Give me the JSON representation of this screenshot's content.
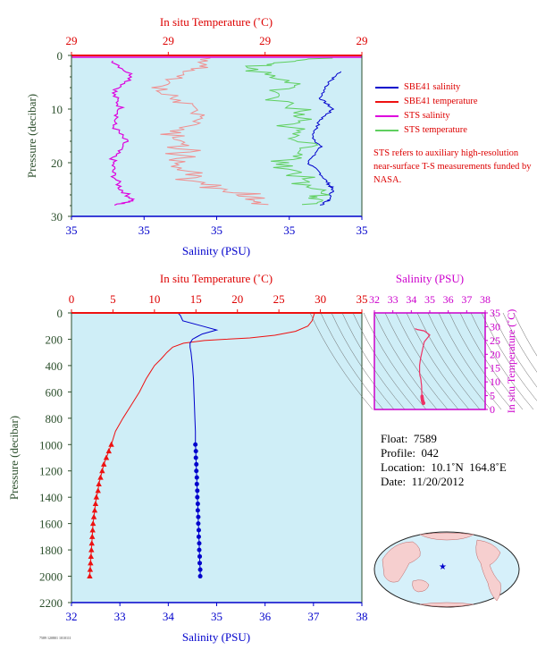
{
  "colors": {
    "plot_bg": "#cfeef7",
    "salinity": "#0000cc",
    "temperature": "#ee1111",
    "sts_salinity": "#dd00dd",
    "sts_temperature": "#5fcf5f",
    "pressure_axis": "#2c4f2c",
    "grid_lines": "#666666"
  },
  "top_chart": {
    "top_axis_title": "In situ Temperature (˚C)",
    "bottom_axis_title": "Salinity (PSU)",
    "left_axis_title": "Pressure (decibar)",
    "temp_ticks": [
      "29",
      "29",
      "29",
      "29"
    ],
    "sal_ticks": [
      "35",
      "35",
      "35",
      "35",
      "35"
    ],
    "pressure_ticks": [
      "0",
      "10",
      "20",
      "30"
    ]
  },
  "legend": {
    "items": [
      {
        "label": "SBE41 salinity",
        "color": "#0000cc"
      },
      {
        "label": "SBE41 temperature",
        "color": "#ee1111"
      },
      {
        "label": "STS salinity",
        "color": "#dd00dd"
      },
      {
        "label": "STS temperature",
        "color": "#5fcf5f"
      }
    ],
    "note": "STS refers to auxiliary high-resolution near-surface T-S measurements funded by NASA."
  },
  "main_chart": {
    "top_axis_title": "In situ Temperature (˚C)",
    "bottom_axis_title": "Salinity (PSU)",
    "left_axis_title": "Pressure (decibar)",
    "temp_ticks": [
      "0",
      "5",
      "10",
      "15",
      "20",
      "25",
      "30",
      "35"
    ],
    "sal_ticks": [
      "32",
      "33",
      "34",
      "35",
      "36",
      "37",
      "38"
    ],
    "pressure_ticks": [
      "0",
      "200",
      "400",
      "600",
      "800",
      "1000",
      "1200",
      "1400",
      "1600",
      "1800",
      "2000",
      "2200"
    ]
  },
  "ts_chart": {
    "top_axis_title": "Salinity (PSU)",
    "right_axis_title": "In situ Temperature (˚C)",
    "sal_ticks": [
      "32",
      "33",
      "34",
      "35",
      "36",
      "37",
      "38"
    ],
    "temp_ticks": [
      "0",
      "5",
      "10",
      "15",
      "20",
      "25",
      "30",
      "35"
    ]
  },
  "info": {
    "float": "Float:  7589",
    "profile": "Profile:  042",
    "location": "Location:  10.1˚N  164.8˚E",
    "date": "Date:  11/20/2012"
  },
  "credit": "7589 120801 1010111",
  "chart_data": [
    {
      "type": "line",
      "ylim": [
        0,
        2200
      ],
      "xlim_temperature": [
        0,
        35
      ],
      "xlim_salinity": [
        32,
        38
      ],
      "series": [
        {
          "name": "SBE41 temperature",
          "pressure": [
            0,
            20,
            60,
            100,
            140,
            170,
            190,
            200,
            210,
            230,
            260,
            300,
            350,
            400,
            450,
            500,
            600,
            700,
            800,
            900,
            1000,
            1050,
            1100,
            1150,
            1200,
            1250,
            1300,
            1350,
            1400,
            1450,
            1500,
            1550,
            1600,
            1650,
            1700,
            1750,
            1800,
            1850,
            1900,
            1950,
            2000
          ],
          "values": [
            29.3,
            29.2,
            29.0,
            28.5,
            27.0,
            24.5,
            21.5,
            18.5,
            16.0,
            13.5,
            12.2,
            11.5,
            10.8,
            10.0,
            9.5,
            9.0,
            8.2,
            7.2,
            6.2,
            5.3,
            4.8,
            4.5,
            4.2,
            3.9,
            3.7,
            3.5,
            3.3,
            3.2,
            3.0,
            2.9,
            2.8,
            2.7,
            2.6,
            2.55,
            2.5,
            2.45,
            2.4,
            2.35,
            2.3,
            2.25,
            2.2
          ]
        },
        {
          "name": "SBE41 salinity",
          "pressure": [
            0,
            20,
            60,
            100,
            130,
            160,
            180,
            200,
            230,
            260,
            300,
            400,
            500,
            600,
            700,
            800,
            900,
            1000,
            1050,
            1100,
            1150,
            1200,
            1250,
            1300,
            1350,
            1400,
            1450,
            1500,
            1550,
            1600,
            1650,
            1700,
            1750,
            1800,
            1850,
            1900,
            1950,
            2000
          ],
          "values": [
            34.2,
            34.25,
            34.3,
            34.7,
            35.0,
            34.7,
            34.6,
            34.5,
            34.45,
            34.45,
            34.47,
            34.5,
            34.52,
            34.53,
            34.54,
            34.55,
            34.56,
            34.56,
            34.57,
            34.57,
            34.58,
            34.58,
            34.59,
            34.59,
            34.6,
            34.6,
            34.61,
            34.61,
            34.62,
            34.62,
            34.63,
            34.63,
            34.64,
            34.64,
            34.65,
            34.65,
            34.66,
            34.66
          ]
        }
      ]
    },
    {
      "type": "line",
      "ylim": [
        0,
        30
      ],
      "series": [
        {
          "name": "SBE41 salinity",
          "pressure": [
            3,
            5,
            8,
            10,
            12,
            15,
            17,
            20,
            22,
            24,
            25,
            27,
            28
          ],
          "values": [
            34.65,
            34.62,
            34.6,
            34.63,
            34.6,
            34.58,
            34.6,
            34.57,
            34.6,
            34.62,
            34.63,
            34.62,
            34.6
          ]
        },
        {
          "name": "STS salinity",
          "pressure": [
            1,
            4,
            7,
            10,
            13,
            16,
            19,
            22,
            25,
            27,
            28
          ],
          "values": [
            34.1,
            34.15,
            34.1,
            34.12,
            34.1,
            34.13,
            34.1,
            34.1,
            34.12,
            34.15,
            34.1
          ]
        },
        {
          "name": "STS temperature",
          "pressure": [
            0.5,
            2,
            5,
            8,
            11,
            14,
            17,
            20,
            23,
            26,
            28
          ],
          "values": [
            29.35,
            29.25,
            29.3,
            29.28,
            29.32,
            29.3,
            29.33,
            29.3,
            29.31,
            29.35,
            29.34
          ]
        },
        {
          "name": "SBE41 temperature",
          "pressure": [
            0.5,
            3,
            6,
            9,
            12,
            15,
            18,
            21,
            24,
            26,
            28
          ],
          "values": [
            29.15,
            29.1,
            29.05,
            29.1,
            29.12,
            29.08,
            29.1,
            29.09,
            29.12,
            29.2,
            29.22
          ]
        }
      ]
    }
  ]
}
